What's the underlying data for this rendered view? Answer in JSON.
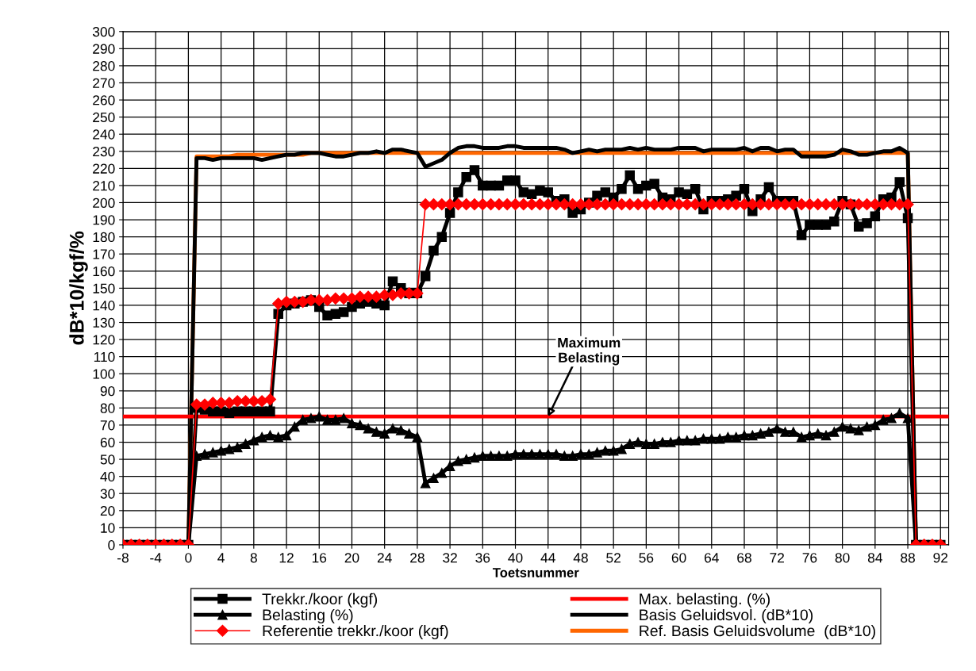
{
  "chart_data": {
    "type": "line",
    "xlabel": "Toetsnummer",
    "ylabel": "dB*10/kgf/%",
    "x": [
      -8,
      -7,
      -6,
      -5,
      -4,
      -3,
      -2,
      -1,
      0,
      1,
      2,
      3,
      4,
      5,
      6,
      7,
      8,
      9,
      10,
      11,
      12,
      13,
      14,
      15,
      16,
      17,
      18,
      19,
      20,
      21,
      22,
      23,
      24,
      25,
      26,
      27,
      28,
      29,
      30,
      31,
      32,
      33,
      34,
      35,
      36,
      37,
      38,
      39,
      40,
      41,
      42,
      43,
      44,
      45,
      46,
      47,
      48,
      49,
      50,
      51,
      52,
      53,
      54,
      55,
      56,
      57,
      58,
      59,
      60,
      61,
      62,
      63,
      64,
      65,
      66,
      67,
      68,
      69,
      70,
      71,
      72,
      73,
      74,
      75,
      76,
      77,
      78,
      79,
      80,
      81,
      82,
      83,
      84,
      85,
      86,
      87,
      88,
      89,
      90,
      91,
      92
    ],
    "xlim": [
      -8,
      93
    ],
    "xticks": [
      -8,
      -4,
      0,
      4,
      8,
      12,
      16,
      20,
      24,
      28,
      32,
      36,
      40,
      44,
      48,
      52,
      56,
      60,
      64,
      68,
      72,
      76,
      80,
      84,
      88,
      92
    ],
    "ylim": [
      0,
      300
    ],
    "yticks": [
      0,
      10,
      20,
      30,
      40,
      50,
      60,
      70,
      80,
      90,
      100,
      110,
      120,
      130,
      140,
      150,
      160,
      170,
      180,
      190,
      200,
      210,
      220,
      230,
      240,
      250,
      260,
      270,
      280,
      290,
      300
    ],
    "grid": true,
    "legend": "bottom",
    "series": [
      {
        "name": "Trekkr./koor (kgf)",
        "color": "#000000",
        "marker": "square",
        "values": [
          0,
          0,
          0,
          0,
          0,
          0,
          0,
          0,
          0,
          80,
          79,
          78,
          78,
          77,
          78,
          78,
          78,
          78,
          78,
          135,
          140,
          141,
          142,
          143,
          139,
          134,
          135,
          136,
          139,
          141,
          142,
          141,
          140,
          154,
          150,
          147,
          147,
          157,
          172,
          180,
          194,
          206,
          215,
          219,
          210,
          210,
          210,
          213,
          213,
          206,
          205,
          207,
          206,
          201,
          202,
          194,
          196,
          200,
          204,
          206,
          203,
          208,
          216,
          208,
          210,
          211,
          203,
          202,
          206,
          205,
          208,
          196,
          201,
          201,
          202,
          204,
          208,
          195,
          202,
          209,
          201,
          201,
          201,
          181,
          187,
          187,
          187,
          189,
          201,
          199,
          186,
          188,
          192,
          202,
          203,
          212,
          191,
          0,
          0,
          0,
          0
        ]
      },
      {
        "name": "Belasting (%)",
        "color": "#000000",
        "marker": "triangle",
        "values": [
          0,
          0,
          0,
          0,
          0,
          0,
          0,
          0,
          0,
          52,
          53,
          54,
          55,
          56,
          57,
          59,
          61,
          63,
          64,
          63,
          64,
          69,
          73,
          74,
          75,
          73,
          73,
          74,
          71,
          70,
          68,
          66,
          65,
          68,
          67,
          65,
          63,
          36,
          39,
          42,
          46,
          49,
          50,
          51,
          52,
          52,
          52,
          52,
          53,
          53,
          53,
          53,
          53,
          53,
          52,
          52,
          53,
          53,
          54,
          55,
          55,
          56,
          59,
          60,
          59,
          59,
          60,
          60,
          61,
          61,
          61,
          62,
          62,
          62,
          63,
          63,
          64,
          64,
          65,
          66,
          68,
          66,
          66,
          63,
          64,
          65,
          64,
          66,
          69,
          68,
          67,
          69,
          70,
          73,
          74,
          77,
          74,
          0,
          0,
          0,
          0
        ]
      },
      {
        "name": "Referentie trekkr./koor (kgf)",
        "color": "#ff0000",
        "marker": "diamond",
        "values": [
          0,
          0,
          0,
          0,
          0,
          0,
          0,
          0,
          0,
          82,
          82,
          83,
          83,
          83,
          84,
          84,
          84,
          84,
          85,
          141,
          142,
          142,
          142,
          143,
          143,
          143,
          144,
          144,
          144,
          145,
          145,
          145,
          146,
          146,
          147,
          147,
          147,
          199,
          199,
          199,
          199,
          199,
          199,
          199,
          199,
          199,
          199,
          199,
          199,
          199,
          199,
          199,
          199,
          199,
          199,
          199,
          199,
          199,
          199,
          199,
          199,
          199,
          199,
          199,
          199,
          199,
          199,
          199,
          199,
          199,
          199,
          199,
          199,
          199,
          199,
          199,
          199,
          199,
          199,
          199,
          199,
          199,
          199,
          199,
          199,
          199,
          199,
          199,
          199,
          199,
          199,
          199,
          199,
          199,
          199,
          199,
          199,
          0,
          0,
          0,
          0
        ]
      },
      {
        "name": "Max. belasting. (%)",
        "color": "#ff0000",
        "marker": "none",
        "x": [
          -8,
          93
        ],
        "values": [
          75,
          75
        ]
      },
      {
        "name": "Basis Geluidsvol. (dB*10)",
        "color": "#000000",
        "marker": "none",
        "values": [
          0,
          0,
          0,
          0,
          0,
          0,
          0,
          0,
          0,
          226,
          226,
          225,
          226,
          226,
          226,
          226,
          226,
          225,
          226,
          227,
          228,
          228,
          229,
          229,
          229,
          228,
          227,
          227,
          228,
          229,
          229,
          230,
          229,
          231,
          231,
          230,
          229,
          221,
          223,
          225,
          229,
          232,
          233,
          233,
          232,
          232,
          232,
          233,
          233,
          232,
          232,
          232,
          232,
          232,
          231,
          229,
          230,
          231,
          230,
          231,
          231,
          231,
          232,
          231,
          232,
          231,
          231,
          231,
          232,
          232,
          232,
          230,
          231,
          231,
          231,
          231,
          232,
          230,
          232,
          232,
          230,
          231,
          231,
          227,
          227,
          227,
          227,
          228,
          231,
          230,
          228,
          228,
          229,
          230,
          230,
          232,
          229,
          0,
          0,
          0,
          0
        ]
      },
      {
        "name": "Ref. Basis Geluidsvolume  (dB*10)",
        "color": "#ff6600",
        "marker": "none",
        "values": [
          null,
          null,
          null,
          null,
          null,
          null,
          null,
          null,
          0,
          227,
          227,
          227,
          227,
          227,
          228,
          228,
          228,
          228,
          228,
          228,
          228,
          228,
          228,
          229,
          229,
          229,
          229,
          229,
          229,
          229,
          229,
          229,
          229,
          229,
          229,
          229,
          229,
          229,
          229,
          229,
          229,
          229,
          229,
          229,
          229,
          229,
          229,
          229,
          229,
          229,
          229,
          229,
          229,
          229,
          229,
          229,
          229,
          229,
          229,
          229,
          229,
          229,
          229,
          229,
          229,
          229,
          229,
          229,
          229,
          229,
          229,
          229,
          229,
          229,
          229,
          229,
          229,
          229,
          229,
          229,
          229,
          229,
          229,
          229,
          229,
          229,
          229,
          229,
          229,
          229,
          229,
          229,
          229,
          229,
          229,
          229,
          229,
          0,
          null,
          null,
          null
        ]
      }
    ],
    "annotations": [
      {
        "text": "Maximum\nBelasting",
        "x": 44,
        "y": 75
      }
    ]
  }
}
